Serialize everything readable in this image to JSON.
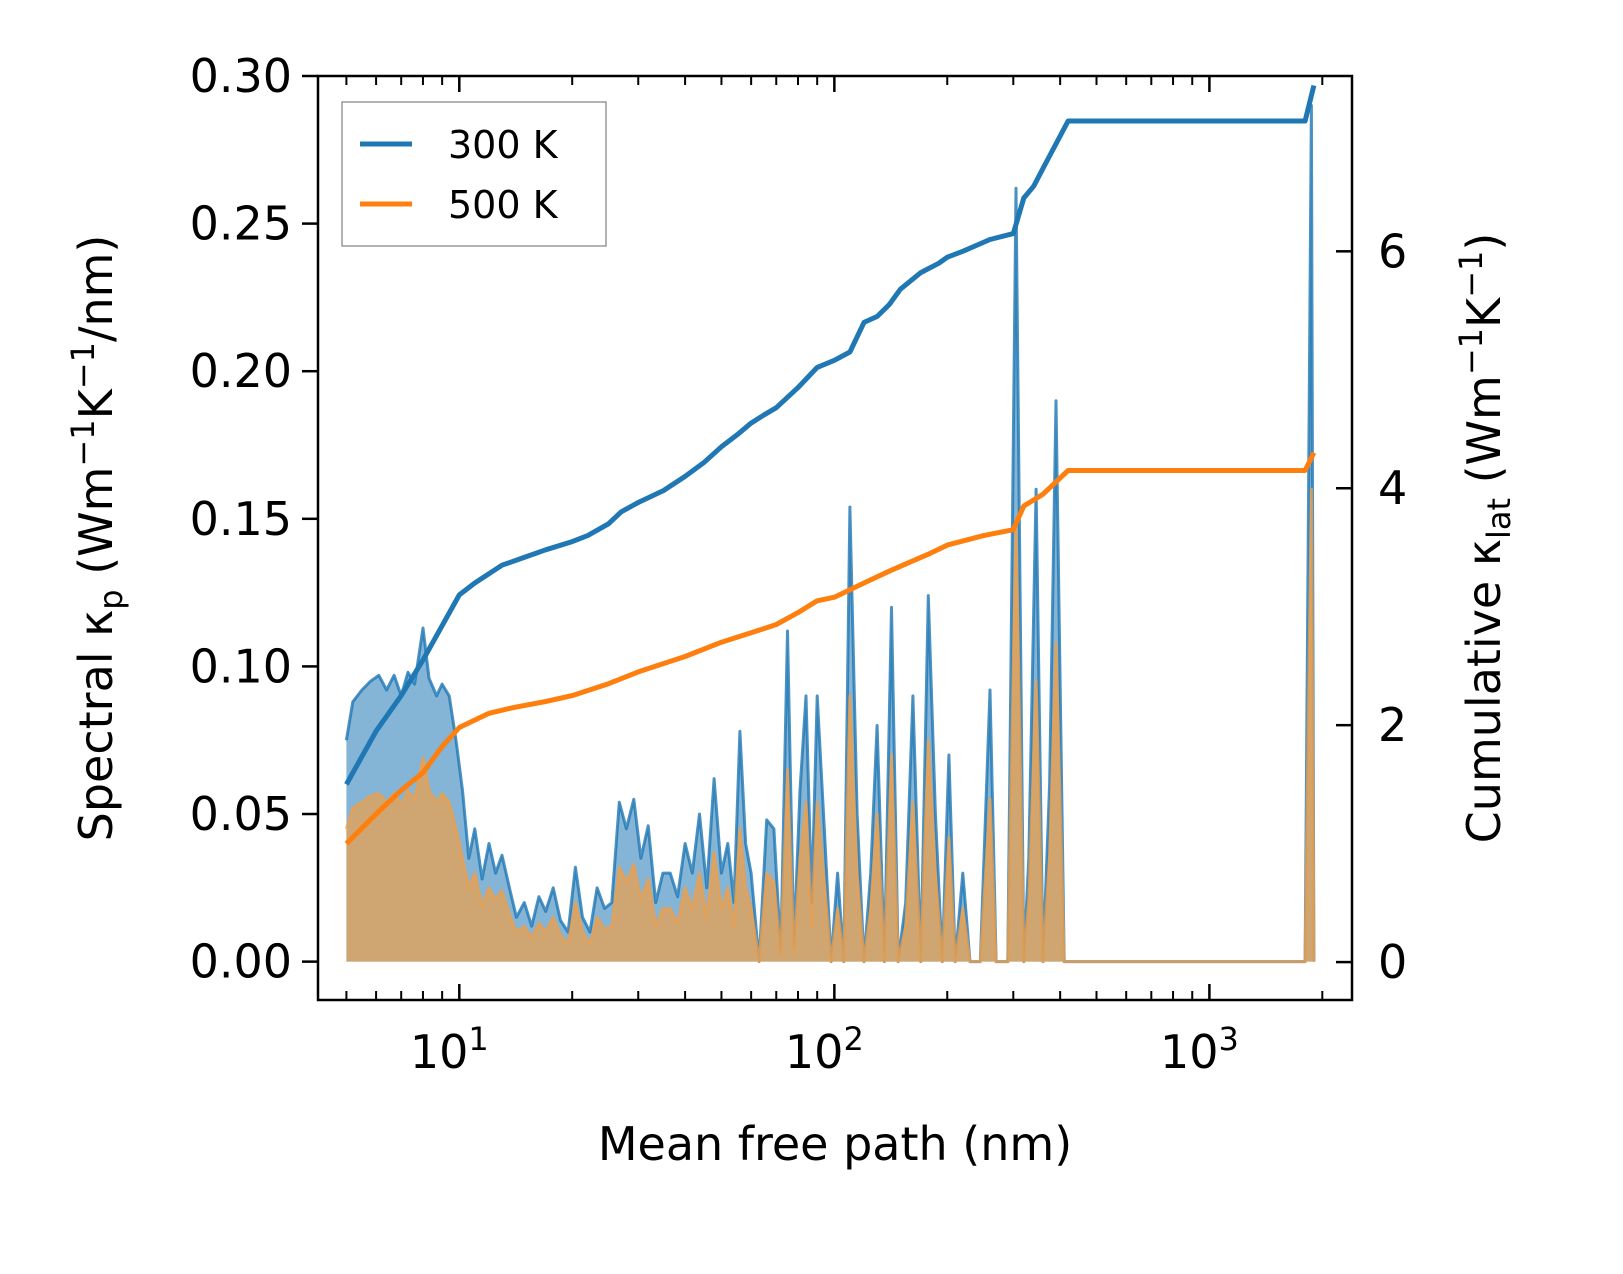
{
  "chart_data": {
    "type": "line+area",
    "title": "",
    "xlabel": "Mean free path (nm)",
    "ylabel_left": "Spectral κ_p (Wm⁻¹K⁻¹/nm)",
    "ylabel_left_parts": {
      "pre": "Spectral κ",
      "sub": "p",
      "mid": " (Wm",
      "s1": "−1",
      "k": "K",
      "s2": "−1",
      "post": "/nm)"
    },
    "ylabel_right": "Cumulative κ_lat (Wm⁻¹K⁻¹)",
    "ylabel_right_parts": {
      "pre": "Cumulative κ",
      "sub": "lat",
      "mid": " (Wm",
      "s1": "−1",
      "k": "K",
      "s2": "−1",
      "post": ")"
    },
    "x_scale": "log",
    "xlim": [
      4.2,
      2400
    ],
    "ylim_left": [
      -0.013,
      0.3
    ],
    "ylim_right": [
      -0.32,
      7.48
    ],
    "left_ticks": [
      0.0,
      0.05,
      0.1,
      0.15,
      0.2,
      0.25,
      0.3
    ],
    "left_tick_labels": [
      "0.00",
      "0.05",
      "0.10",
      "0.15",
      "0.20",
      "0.25",
      "0.30"
    ],
    "right_ticks": [
      0,
      2,
      4,
      6
    ],
    "right_tick_labels": [
      "0",
      "2",
      "4",
      "6"
    ],
    "x_ticks": [
      {
        "base": "10",
        "exp": "1",
        "value": 10
      },
      {
        "base": "10",
        "exp": "2",
        "value": 100
      },
      {
        "base": "10",
        "exp": "3",
        "value": 1000
      }
    ],
    "legend": {
      "position": "top-left",
      "entries": [
        "300 K",
        "500 K"
      ]
    },
    "colors": {
      "300 K": "#1f77b4",
      "500 K": "#ff7f0e",
      "fill_300": "#1f77b4",
      "fill_500": "#e8a050"
    },
    "series": [
      {
        "name": "300 K",
        "axis": "right",
        "kind": "cumulative",
        "x": [
          5,
          6,
          7,
          8,
          10,
          11,
          13,
          15,
          17,
          20,
          22,
          25,
          27,
          30,
          35,
          40,
          45,
          50,
          55,
          60,
          65,
          70,
          80,
          90,
          100,
          110,
          120,
          130,
          140,
          150,
          170,
          190,
          200,
          220,
          260,
          300,
          320,
          340,
          360,
          420,
          1800,
          1900
        ],
        "y": [
          1.5,
          1.95,
          2.25,
          2.55,
          3.1,
          3.2,
          3.35,
          3.42,
          3.48,
          3.55,
          3.6,
          3.7,
          3.8,
          3.88,
          3.98,
          4.1,
          4.22,
          4.35,
          4.45,
          4.55,
          4.62,
          4.68,
          4.85,
          5.02,
          5.08,
          5.15,
          5.4,
          5.45,
          5.55,
          5.68,
          5.82,
          5.9,
          5.95,
          6.0,
          6.1,
          6.15,
          6.45,
          6.55,
          6.7,
          7.1,
          7.1,
          7.4
        ]
      },
      {
        "name": "500 K",
        "axis": "right",
        "kind": "cumulative",
        "x": [
          5,
          6,
          7,
          8,
          9,
          10,
          12,
          14,
          17,
          20,
          25,
          30,
          40,
          50,
          60,
          70,
          80,
          90,
          100,
          120,
          140,
          160,
          180,
          200,
          250,
          300,
          320,
          360,
          420,
          1800,
          1900
        ],
        "y": [
          1.0,
          1.25,
          1.45,
          1.6,
          1.82,
          1.98,
          2.1,
          2.15,
          2.2,
          2.25,
          2.35,
          2.45,
          2.58,
          2.7,
          2.78,
          2.85,
          2.95,
          3.05,
          3.08,
          3.2,
          3.3,
          3.38,
          3.45,
          3.52,
          3.6,
          3.65,
          3.85,
          3.95,
          4.15,
          4.15,
          4.3
        ]
      },
      {
        "name": "300 K spectral",
        "axis": "left",
        "kind": "spectral",
        "x": [
          5,
          5.2,
          5.5,
          5.8,
          6.1,
          6.4,
          6.7,
          7,
          7.3,
          7.6,
          8,
          8.3,
          8.7,
          9,
          9.4,
          9.8,
          10.2,
          10.6,
          11,
          11.5,
          12,
          12.5,
          13,
          13.6,
          14.2,
          14.9,
          15.6,
          16.3,
          17,
          17.8,
          18.6,
          19.5,
          20.4,
          21.3,
          22.3,
          23.3,
          24.4,
          25.5,
          26.7,
          27.9,
          29.2,
          30.5,
          31.9,
          33.4,
          34.9,
          36.5,
          38.2,
          40,
          41.8,
          43.7,
          45.7,
          47.8,
          50,
          52,
          54,
          56,
          58,
          60,
          63,
          66,
          69,
          72,
          75,
          78,
          81,
          84,
          87,
          90,
          94,
          98,
          102,
          106,
          110,
          115,
          120,
          125,
          130,
          136,
          142,
          148,
          155,
          162,
          170,
          178,
          186,
          194,
          202,
          210,
          220,
          230,
          245,
          260,
          270,
          290,
          305,
          320,
          330,
          345,
          360,
          375,
          390,
          410,
          430,
          450,
          470,
          1800,
          1870,
          1900
        ],
        "y": [
          0.075,
          0.088,
          0.092,
          0.095,
          0.097,
          0.092,
          0.097,
          0.09,
          0.098,
          0.094,
          0.113,
          0.096,
          0.09,
          0.094,
          0.09,
          0.075,
          0.058,
          0.035,
          0.045,
          0.028,
          0.04,
          0.03,
          0.036,
          0.025,
          0.015,
          0.02,
          0.012,
          0.022,
          0.017,
          0.025,
          0.014,
          0.01,
          0.032,
          0.015,
          0.01,
          0.025,
          0.018,
          0.02,
          0.054,
          0.045,
          0.055,
          0.035,
          0.046,
          0.02,
          0.03,
          0.03,
          0.022,
          0.04,
          0.03,
          0.05,
          0.025,
          0.062,
          0.03,
          0.04,
          0.02,
          0.078,
          0.04,
          0.03,
          0.0,
          0.048,
          0.045,
          0.003,
          0.112,
          0.005,
          0.058,
          0.09,
          0.02,
          0.09,
          0.045,
          0.0,
          0.03,
          0.0,
          0.154,
          0.05,
          0.0,
          0.03,
          0.08,
          0.0,
          0.12,
          0.0,
          0.02,
          0.09,
          0.0,
          0.124,
          0.05,
          0.0,
          0.07,
          0.0,
          0.03,
          0.0,
          0.0,
          0.092,
          0.0,
          0.0,
          0.262,
          0.0,
          0.035,
          0.16,
          0.0,
          0.06,
          0.19,
          0.0,
          0.0,
          0.0,
          0.0,
          0.0,
          0.29,
          0.0
        ]
      },
      {
        "name": "500 K spectral",
        "axis": "left",
        "kind": "spectral",
        "x": [
          5,
          5.2,
          5.5,
          5.8,
          6.1,
          6.4,
          6.7,
          7,
          7.3,
          7.6,
          8,
          8.3,
          8.7,
          9,
          9.4,
          9.8,
          10.2,
          10.6,
          11,
          11.5,
          12,
          12.5,
          13,
          13.6,
          14.2,
          14.9,
          15.6,
          16.3,
          17,
          17.8,
          18.6,
          19.5,
          20.4,
          21.3,
          22.3,
          23.3,
          24.4,
          25.5,
          26.7,
          27.9,
          29.2,
          30.5,
          31.9,
          33.4,
          34.9,
          36.5,
          38.2,
          40,
          41.8,
          43.7,
          45.7,
          47.8,
          50,
          52,
          54,
          56,
          58,
          60,
          63,
          66,
          69,
          72,
          75,
          78,
          81,
          84,
          87,
          90,
          94,
          98,
          102,
          106,
          110,
          115,
          120,
          125,
          130,
          136,
          142,
          148,
          155,
          162,
          170,
          178,
          186,
          194,
          202,
          210,
          220,
          230,
          245,
          260,
          270,
          290,
          305,
          320,
          330,
          345,
          360,
          375,
          390,
          410,
          430,
          450,
          470,
          1800,
          1870,
          1900
        ],
        "y": [
          0.045,
          0.052,
          0.054,
          0.056,
          0.057,
          0.054,
          0.057,
          0.053,
          0.058,
          0.055,
          0.069,
          0.058,
          0.054,
          0.057,
          0.054,
          0.045,
          0.035,
          0.025,
          0.03,
          0.019,
          0.025,
          0.021,
          0.024,
          0.016,
          0.01,
          0.012,
          0.008,
          0.013,
          0.01,
          0.015,
          0.009,
          0.006,
          0.02,
          0.01,
          0.006,
          0.015,
          0.011,
          0.012,
          0.032,
          0.027,
          0.033,
          0.021,
          0.028,
          0.012,
          0.018,
          0.018,
          0.013,
          0.025,
          0.018,
          0.03,
          0.015,
          0.037,
          0.018,
          0.025,
          0.012,
          0.045,
          0.025,
          0.018,
          0.0,
          0.03,
          0.027,
          0.002,
          0.065,
          0.003,
          0.035,
          0.054,
          0.012,
          0.054,
          0.027,
          0.0,
          0.018,
          0.0,
          0.09,
          0.03,
          0.0,
          0.018,
          0.05,
          0.0,
          0.07,
          0.0,
          0.012,
          0.054,
          0.0,
          0.075,
          0.03,
          0.0,
          0.042,
          0.0,
          0.018,
          0.0,
          0.0,
          0.055,
          0.0,
          0.0,
          0.15,
          0.0,
          0.021,
          0.095,
          0.0,
          0.036,
          0.108,
          0.0,
          0.0,
          0.0,
          0.0,
          0.0,
          0.16,
          0.0
        ]
      }
    ]
  }
}
